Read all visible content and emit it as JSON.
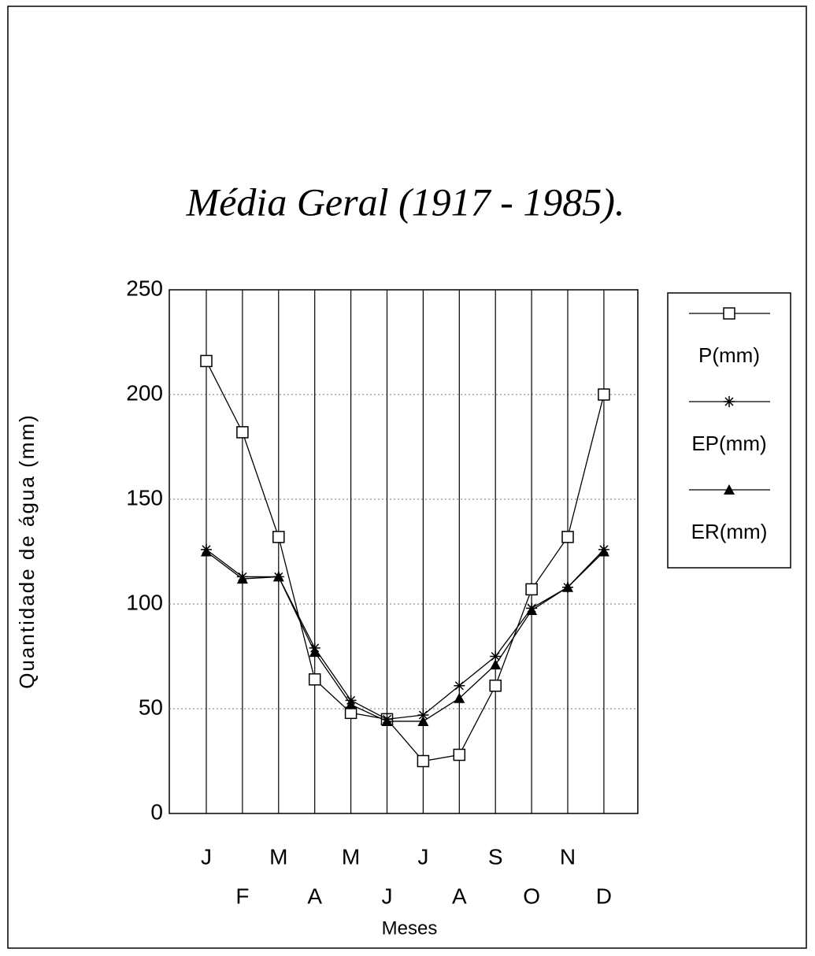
{
  "chart_data": {
    "type": "line",
    "title": "Média Geral (1917 - 1985).",
    "x_label": "Meses",
    "y_label": "Quantidade de água (mm)",
    "categories": [
      "J",
      "F",
      "M",
      "A",
      "M",
      "J",
      "J",
      "A",
      "S",
      "O",
      "N",
      "D"
    ],
    "series": [
      {
        "name": "P(mm)",
        "color": "#000000",
        "marker": "square",
        "values": [
          216,
          182,
          132,
          64,
          48,
          45,
          25,
          28,
          61,
          107,
          132,
          200
        ]
      },
      {
        "name": "EP(mm)",
        "color": "#000000",
        "marker": "asterisk",
        "values": [
          126,
          113,
          113,
          79,
          54,
          45,
          47,
          61,
          75,
          98,
          108,
          126
        ]
      },
      {
        "name": "ER(mm)",
        "color": "#000000",
        "marker": "triangle",
        "values": [
          125,
          112,
          113,
          77,
          52,
          44,
          44,
          55,
          71,
          97,
          108,
          125
        ]
      }
    ],
    "ylim": [
      0,
      250
    ],
    "yticks": [
      0,
      50,
      100,
      150,
      200,
      250
    ],
    "grid": true,
    "legend": "right"
  }
}
